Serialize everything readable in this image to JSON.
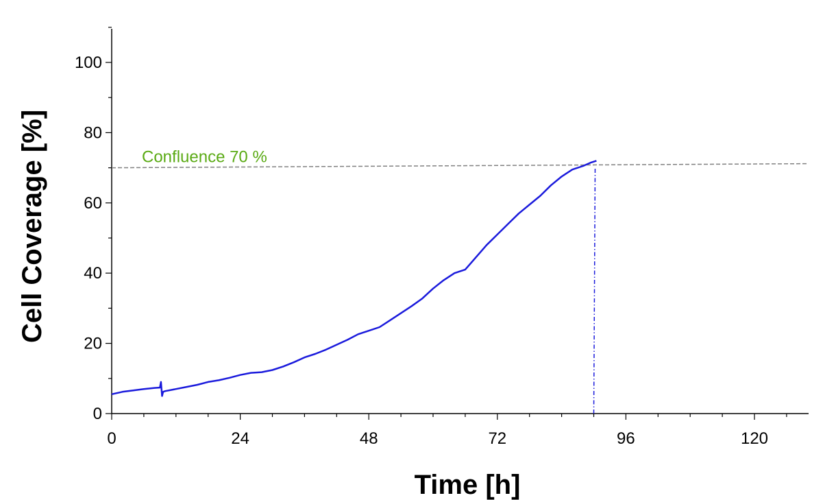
{
  "chart_data": {
    "type": "line",
    "xlabel": "Time [h]",
    "ylabel": "Cell Coverage [%]",
    "xlim": [
      0,
      130
    ],
    "ylim": [
      0,
      110
    ],
    "x_ticks": [
      0,
      24,
      48,
      72,
      96,
      120
    ],
    "y_ticks": [
      0,
      20,
      40,
      60,
      80,
      100
    ],
    "x_minor_step": 6,
    "y_minor_step": 10,
    "grid": false,
    "series": [
      {
        "color": "#1a1adc",
        "x": [
          0,
          2,
          4,
          6,
          8,
          9,
          9.2,
          9.4,
          9.6,
          10,
          12,
          14,
          16,
          18,
          20,
          22,
          24,
          26,
          28,
          30,
          32,
          34,
          36,
          38,
          40,
          42,
          44,
          46,
          48,
          50,
          52,
          54,
          56,
          58,
          60,
          62,
          64,
          66,
          68,
          70,
          72,
          74,
          76,
          78,
          80,
          82,
          84,
          86,
          88,
          89.5,
          90.5
        ],
        "y": [
          5.5,
          6.2,
          6.6,
          7.0,
          7.3,
          7.4,
          9.0,
          5.0,
          6.2,
          6.4,
          7.0,
          7.6,
          8.2,
          9.0,
          9.5,
          10.2,
          11.0,
          11.6,
          11.8,
          12.4,
          13.4,
          14.6,
          16.0,
          17.0,
          18.2,
          19.6,
          21.0,
          22.6,
          23.6,
          24.6,
          26.6,
          28.6,
          30.6,
          32.8,
          35.6,
          38.0,
          40.0,
          41.0,
          44.5,
          48.0,
          51.0,
          54.0,
          57.0,
          59.5,
          62.0,
          65.0,
          67.5,
          69.5,
          70.5,
          71.5,
          72.0
        ]
      }
    ],
    "reference_line": {
      "y": 70,
      "label": "Confluence 70 %",
      "color": "#808080"
    },
    "vertical_marker": {
      "x": 90,
      "color": "#1a1adc"
    },
    "annotation_color": "#5aaa14"
  }
}
